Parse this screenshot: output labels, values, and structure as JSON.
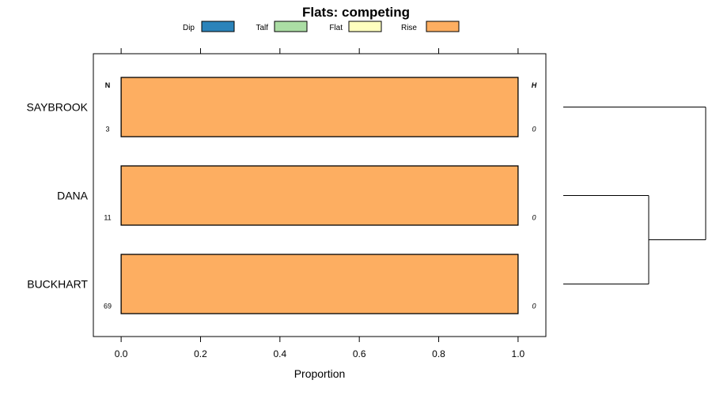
{
  "chart_data": {
    "type": "bar",
    "orientation": "horizontal",
    "stacked": true,
    "title": "Flats: competing",
    "xlabel": "Proportion",
    "ylabel": "",
    "xlim": [
      -0.07,
      1.07
    ],
    "x_ticks": [
      0.0,
      0.2,
      0.4,
      0.6,
      0.8,
      1.0
    ],
    "x_tick_labels": [
      "0.0",
      "0.2",
      "0.4",
      "0.6",
      "0.8",
      "1.0"
    ],
    "grid": false,
    "legend_position": "top",
    "legend": [
      {
        "name": "Dip",
        "color": "#2b83ba"
      },
      {
        "name": "Talf",
        "color": "#abdda4"
      },
      {
        "name": "Flat",
        "color": "#ffffbf"
      },
      {
        "name": "Rise",
        "color": "#fdae61"
      }
    ],
    "categories": [
      "SAYBROOK",
      "DANA",
      "BUCKHART"
    ],
    "series": [
      {
        "name": "Dip",
        "values": [
          0,
          0,
          0
        ]
      },
      {
        "name": "Talf",
        "values": [
          0,
          0,
          0
        ]
      },
      {
        "name": "Flat",
        "values": [
          0,
          0,
          0
        ]
      },
      {
        "name": "Rise",
        "values": [
          1.0,
          1.0,
          1.0
        ]
      }
    ],
    "n_header": "N",
    "n_values": [
      "3",
      "11",
      "69"
    ],
    "h_header": "H",
    "h_values": [
      "0",
      "0",
      "0"
    ],
    "dendrogram": {
      "leaves": [
        "SAYBROOK",
        "DANA",
        "BUCKHART"
      ],
      "merges": [
        {
          "left": "DANA",
          "right": "BUCKHART",
          "height": 0.6
        },
        {
          "left": "SAYBROOK",
          "right": "DANA+BUCKHART",
          "height": 1.0
        }
      ]
    }
  }
}
